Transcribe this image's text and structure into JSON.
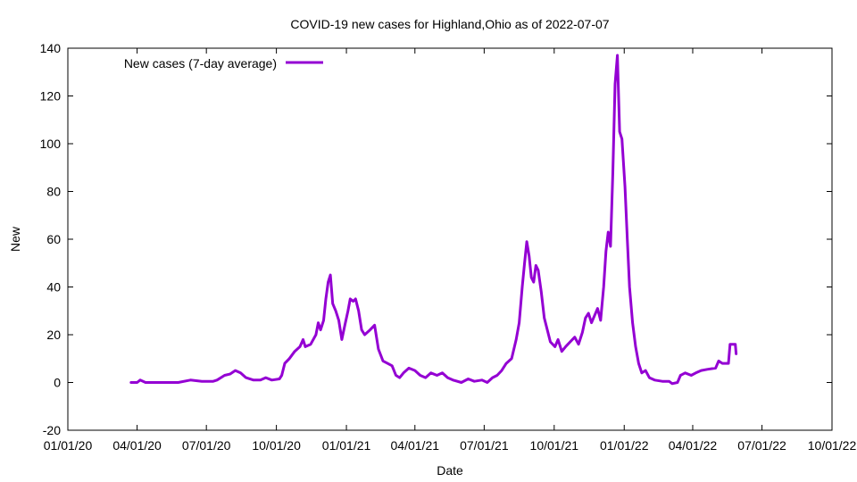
{
  "chart_data": {
    "type": "line",
    "title": "COVID-19 new cases for Highland,Ohio as of 2022-07-07",
    "xlabel": "Date",
    "ylabel": "New",
    "xlim": [
      "2020-01-01",
      "2022-10-01"
    ],
    "ylim": [
      -20,
      140
    ],
    "x_ticks": [
      {
        "date": "2020-01-01",
        "label": "01/01/20"
      },
      {
        "date": "2020-04-01",
        "label": "04/01/20"
      },
      {
        "date": "2020-07-01",
        "label": "07/01/20"
      },
      {
        "date": "2020-10-01",
        "label": "10/01/20"
      },
      {
        "date": "2021-01-01",
        "label": "01/01/21"
      },
      {
        "date": "2021-04-01",
        "label": "04/01/21"
      },
      {
        "date": "2021-07-01",
        "label": "07/01/21"
      },
      {
        "date": "2021-10-01",
        "label": "10/01/21"
      },
      {
        "date": "2022-01-01",
        "label": "01/01/22"
      },
      {
        "date": "2022-04-01",
        "label": "04/01/22"
      },
      {
        "date": "2022-07-01",
        "label": "07/01/22"
      },
      {
        "date": "2022-10-01",
        "label": "10/01/22"
      }
    ],
    "y_ticks": [
      -20,
      0,
      20,
      40,
      60,
      80,
      100,
      120,
      140
    ],
    "grid": false,
    "legend_position": "top-left",
    "series": [
      {
        "name": "New cases (7-day average)",
        "color": "#9400d3",
        "points": [
          [
            "2020-03-24",
            0
          ],
          [
            "2020-04-01",
            0
          ],
          [
            "2020-04-05",
            1
          ],
          [
            "2020-04-12",
            0
          ],
          [
            "2020-04-25",
            0
          ],
          [
            "2020-05-10",
            0
          ],
          [
            "2020-05-25",
            0
          ],
          [
            "2020-06-10",
            1
          ],
          [
            "2020-06-25",
            0.5
          ],
          [
            "2020-07-10",
            0.5
          ],
          [
            "2020-07-15",
            1
          ],
          [
            "2020-07-25",
            3
          ],
          [
            "2020-08-01",
            3.5
          ],
          [
            "2020-08-08",
            5
          ],
          [
            "2020-08-15",
            4
          ],
          [
            "2020-08-22",
            2
          ],
          [
            "2020-09-01",
            1
          ],
          [
            "2020-09-10",
            1
          ],
          [
            "2020-09-17",
            2
          ],
          [
            "2020-09-25",
            1
          ],
          [
            "2020-10-05",
            1.5
          ],
          [
            "2020-10-08",
            3
          ],
          [
            "2020-10-12",
            8
          ],
          [
            "2020-10-18",
            10
          ],
          [
            "2020-10-25",
            13
          ],
          [
            "2020-11-01",
            15
          ],
          [
            "2020-11-05",
            18
          ],
          [
            "2020-11-08",
            15
          ],
          [
            "2020-11-15",
            16
          ],
          [
            "2020-11-22",
            20
          ],
          [
            "2020-11-25",
            25
          ],
          [
            "2020-11-28",
            22
          ],
          [
            "2020-12-02",
            26
          ],
          [
            "2020-12-05",
            35
          ],
          [
            "2020-12-08",
            42
          ],
          [
            "2020-12-11",
            45
          ],
          [
            "2020-12-14",
            33
          ],
          [
            "2020-12-18",
            30
          ],
          [
            "2020-12-22",
            26
          ],
          [
            "2020-12-26",
            18
          ],
          [
            "2020-12-30",
            24
          ],
          [
            "2021-01-03",
            30
          ],
          [
            "2021-01-06",
            35
          ],
          [
            "2021-01-10",
            34
          ],
          [
            "2021-01-13",
            35
          ],
          [
            "2021-01-17",
            30
          ],
          [
            "2021-01-21",
            22
          ],
          [
            "2021-01-25",
            20
          ],
          [
            "2021-02-01",
            22
          ],
          [
            "2021-02-07",
            24
          ],
          [
            "2021-02-12",
            14
          ],
          [
            "2021-02-18",
            9
          ],
          [
            "2021-02-24",
            8
          ],
          [
            "2021-03-02",
            7
          ],
          [
            "2021-03-07",
            3
          ],
          [
            "2021-03-12",
            2
          ],
          [
            "2021-03-17",
            4
          ],
          [
            "2021-03-24",
            6
          ],
          [
            "2021-04-01",
            5
          ],
          [
            "2021-04-08",
            3
          ],
          [
            "2021-04-15",
            2
          ],
          [
            "2021-04-22",
            4
          ],
          [
            "2021-04-30",
            3
          ],
          [
            "2021-05-07",
            4
          ],
          [
            "2021-05-14",
            2
          ],
          [
            "2021-05-21",
            1
          ],
          [
            "2021-06-01",
            0
          ],
          [
            "2021-06-10",
            1.5
          ],
          [
            "2021-06-18",
            0.5
          ],
          [
            "2021-06-28",
            1
          ],
          [
            "2021-07-05",
            0
          ],
          [
            "2021-07-12",
            2
          ],
          [
            "2021-07-18",
            3
          ],
          [
            "2021-07-24",
            5
          ],
          [
            "2021-07-30",
            8
          ],
          [
            "2021-08-06",
            10
          ],
          [
            "2021-08-12",
            18
          ],
          [
            "2021-08-16",
            25
          ],
          [
            "2021-08-20",
            40
          ],
          [
            "2021-08-23",
            50
          ],
          [
            "2021-08-26",
            59
          ],
          [
            "2021-08-29",
            53
          ],
          [
            "2021-09-01",
            44
          ],
          [
            "2021-09-04",
            42
          ],
          [
            "2021-09-07",
            49
          ],
          [
            "2021-09-10",
            47
          ],
          [
            "2021-09-14",
            38
          ],
          [
            "2021-09-18",
            27
          ],
          [
            "2021-09-22",
            22
          ],
          [
            "2021-09-26",
            17
          ],
          [
            "2021-10-02",
            15
          ],
          [
            "2021-10-06",
            18
          ],
          [
            "2021-10-11",
            13
          ],
          [
            "2021-10-16",
            15
          ],
          [
            "2021-10-22",
            17
          ],
          [
            "2021-10-28",
            19
          ],
          [
            "2021-11-02",
            16
          ],
          [
            "2021-11-07",
            21
          ],
          [
            "2021-11-11",
            27
          ],
          [
            "2021-11-15",
            29
          ],
          [
            "2021-11-19",
            25
          ],
          [
            "2021-11-23",
            28
          ],
          [
            "2021-11-27",
            31
          ],
          [
            "2021-12-01",
            26
          ],
          [
            "2021-12-05",
            40
          ],
          [
            "2021-12-08",
            55
          ],
          [
            "2021-12-11",
            63
          ],
          [
            "2021-12-14",
            57
          ],
          [
            "2021-12-17",
            88
          ],
          [
            "2021-12-20",
            125
          ],
          [
            "2021-12-23",
            137
          ],
          [
            "2021-12-26",
            105
          ],
          [
            "2021-12-29",
            102
          ],
          [
            "2022-01-02",
            82
          ],
          [
            "2022-01-05",
            60
          ],
          [
            "2022-01-08",
            40
          ],
          [
            "2022-01-12",
            25
          ],
          [
            "2022-01-16",
            15
          ],
          [
            "2022-01-20",
            8
          ],
          [
            "2022-01-24",
            4
          ],
          [
            "2022-01-29",
            5
          ],
          [
            "2022-02-03",
            2
          ],
          [
            "2022-02-10",
            1
          ],
          [
            "2022-02-20",
            0.5
          ],
          [
            "2022-03-01",
            0.5
          ],
          [
            "2022-03-05",
            -0.5
          ],
          [
            "2022-03-12",
            0
          ],
          [
            "2022-03-16",
            3
          ],
          [
            "2022-03-22",
            4
          ],
          [
            "2022-03-30",
            3
          ],
          [
            "2022-04-05",
            4
          ],
          [
            "2022-04-12",
            5
          ],
          [
            "2022-04-20",
            5.5
          ],
          [
            "2022-05-01",
            6
          ],
          [
            "2022-05-05",
            9
          ],
          [
            "2022-05-10",
            8
          ],
          [
            "2022-05-18",
            8
          ],
          [
            "2022-05-20",
            16
          ],
          [
            "2022-05-27",
            16
          ],
          [
            "2022-05-28",
            12
          ]
        ]
      }
    ]
  }
}
